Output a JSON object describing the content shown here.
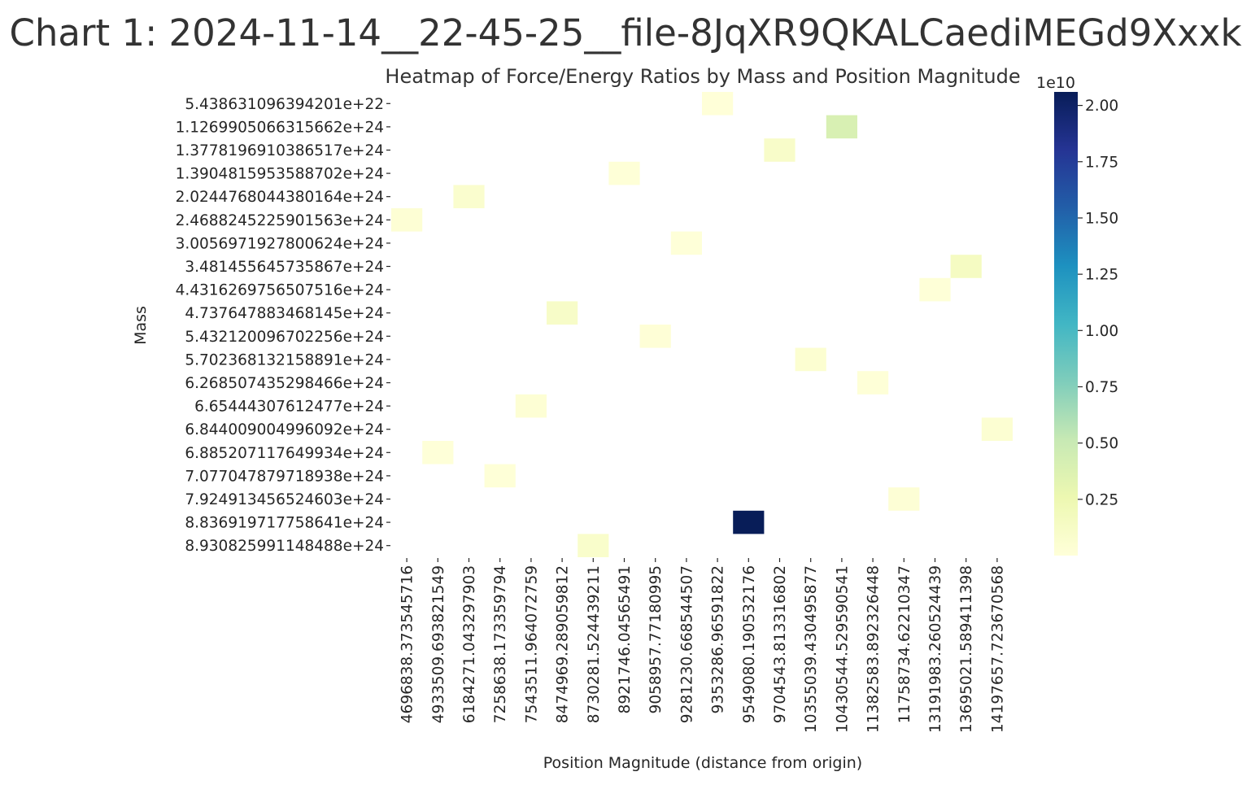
{
  "page_title": "Chart 1: 2024-11-14__22-45-25__file-8JqXR9QKALCaediMEGd9Xxxk",
  "chart_data": {
    "type": "heatmap",
    "title": "Heatmap of Force/Energy Ratios by Mass and Position Magnitude",
    "xlabel": "Position Magnitude (distance from origin)",
    "ylabel": "Mass",
    "colormap": "YlGnBu",
    "colors": {
      "low": "#ffffd9",
      "high": "#081d58"
    },
    "x_categories": [
      "4696838.373545716",
      "4933509.693821549",
      "6184271.043297903",
      "7258638.173359794",
      "7543511.964072759",
      "8474969.289059812",
      "8730281.524439211",
      "8921746.04565491",
      "9058957.77180995",
      "9281230.668544507",
      "9353286.96591822",
      "9549080.190532176",
      "9704543.813316802",
      "10355039.430495877",
      "10430544.529590541",
      "11382583.892326448",
      "11758734.62210347",
      "13191983.260524439",
      "13695021.589411398",
      "14197657.723670568"
    ],
    "y_categories": [
      "5.438631096394201e+22",
      "1.1269905066315662e+24",
      "1.3778196910386517e+24",
      "1.3904815953588702e+24",
      "2.0244768044380164e+24",
      "2.4688245225901563e+24",
      "3.0056971927800624e+24",
      "3.481455645735867e+24",
      "4.4316269756507516e+24",
      "4.737647883468145e+24",
      "5.432120096702256e+24",
      "5.702368132158891e+24",
      "6.268507435298466e+24",
      "6.65444307612477e+24",
      "6.844009004996092e+24",
      "6.885207117649934e+24",
      "7.077047879718938e+24",
      "7.924913456524603e+24",
      "8.836919717758641e+24",
      "8.930825991148488e+24"
    ],
    "cells": [
      {
        "row": 0,
        "col": 10,
        "value": 40000000
      },
      {
        "row": 1,
        "col": 14,
        "value": 4000000000
      },
      {
        "row": 2,
        "col": 12,
        "value": 1000000000
      },
      {
        "row": 3,
        "col": 7,
        "value": 100000000
      },
      {
        "row": 4,
        "col": 2,
        "value": 700000000
      },
      {
        "row": 5,
        "col": 0,
        "value": 300000000
      },
      {
        "row": 6,
        "col": 9,
        "value": 80000000
      },
      {
        "row": 7,
        "col": 18,
        "value": 1500000000
      },
      {
        "row": 8,
        "col": 17,
        "value": 150000000
      },
      {
        "row": 9,
        "col": 5,
        "value": 1100000000
      },
      {
        "row": 10,
        "col": 8,
        "value": 200000000
      },
      {
        "row": 11,
        "col": 13,
        "value": 500000000
      },
      {
        "row": 12,
        "col": 15,
        "value": 120000000
      },
      {
        "row": 13,
        "col": 4,
        "value": 350000000
      },
      {
        "row": 14,
        "col": 19,
        "value": 450000000
      },
      {
        "row": 15,
        "col": 1,
        "value": 90000000
      },
      {
        "row": 16,
        "col": 3,
        "value": 110000000
      },
      {
        "row": 17,
        "col": 16,
        "value": 250000000
      },
      {
        "row": 18,
        "col": 11,
        "value": 20600000000
      },
      {
        "row": 19,
        "col": 6,
        "value": 900000000
      }
    ],
    "colorbar": {
      "min": 0,
      "max": 20600000000,
      "ticks": [
        0.25,
        0.5,
        0.75,
        1.0,
        1.25,
        1.5,
        1.75,
        2.0
      ],
      "tick_labels": [
        "0.25",
        "0.50",
        "0.75",
        "1.00",
        "1.25",
        "1.50",
        "1.75",
        "2.00"
      ],
      "scale_label": "1e10"
    }
  }
}
